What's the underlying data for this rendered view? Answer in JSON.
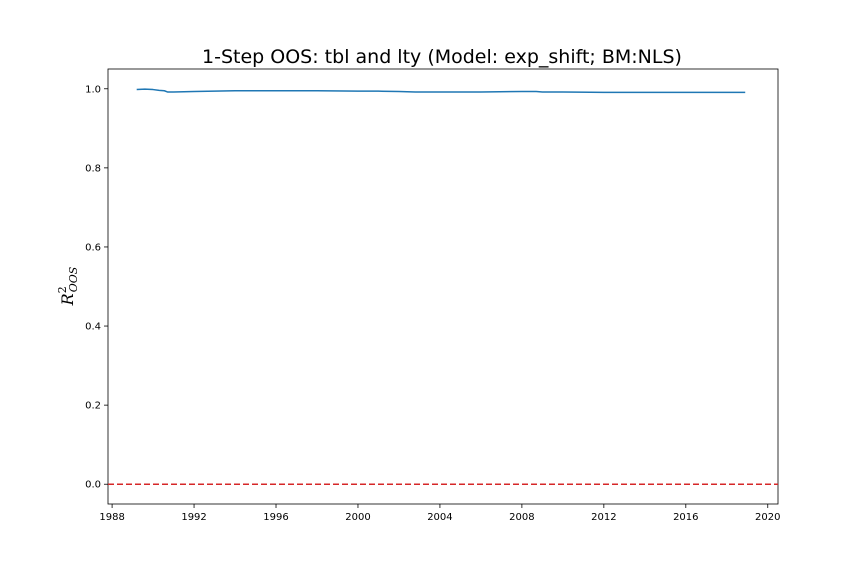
{
  "chart_data": {
    "type": "line",
    "title": "1-Step OOS: tbl and lty (Model: exp_shift; BM:NLS)",
    "xlabel": "",
    "ylabel": {
      "base": "R",
      "sup": "2",
      "sub": "OOS"
    },
    "xlim": [
      1987.8,
      2020.5
    ],
    "ylim": [
      -0.05,
      1.05
    ],
    "x_ticks": [
      1988,
      1992,
      1996,
      2000,
      2004,
      2008,
      2012,
      2016,
      2020
    ],
    "y_ticks": [
      0.0,
      0.2,
      0.4,
      0.6,
      0.8,
      1.0
    ],
    "y_tick_labels": [
      "0.0",
      "0.2",
      "0.4",
      "0.6",
      "0.8",
      "1.0"
    ],
    "grid": false,
    "series": [
      {
        "color": "#1f77b4",
        "x": [
          1989.2,
          1989.6,
          1990.0,
          1990.3,
          1990.55,
          1990.7,
          1991.0,
          1992.0,
          1993.0,
          1994.0,
          1996.0,
          1998.0,
          2000.0,
          2001.0,
          2002.0,
          2002.8,
          2004.0,
          2006.0,
          2008.0,
          2008.7,
          2009.0,
          2010.0,
          2012.0,
          2014.0,
          2016.0,
          2018.0,
          2018.9
        ],
        "y": [
          0.998,
          0.999,
          0.998,
          0.996,
          0.995,
          0.992,
          0.992,
          0.993,
          0.994,
          0.995,
          0.995,
          0.995,
          0.994,
          0.994,
          0.993,
          0.992,
          0.992,
          0.992,
          0.993,
          0.993,
          0.992,
          0.992,
          0.991,
          0.991,
          0.991,
          0.991,
          0.991
        ]
      }
    ],
    "reference_lines": [
      {
        "y": 0.0,
        "color": "#d62728",
        "style": "dashed"
      }
    ]
  }
}
